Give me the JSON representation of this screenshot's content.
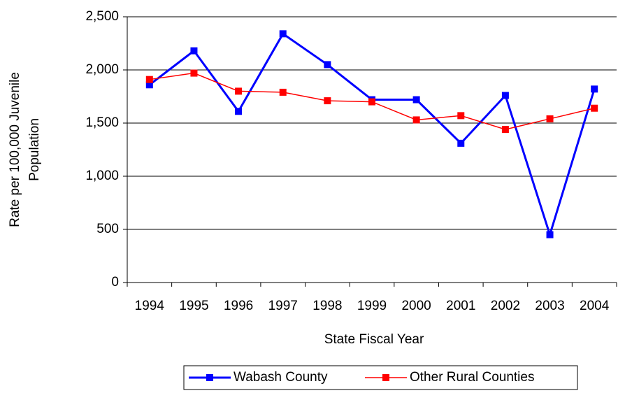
{
  "chart_data": {
    "type": "line",
    "x_label": "State Fiscal Year",
    "y_label": [
      "Rate per 100,000 Juvenile",
      "Population"
    ],
    "categories": [
      "1994",
      "1995",
      "1996",
      "1997",
      "1998",
      "1999",
      "2000",
      "2001",
      "2002",
      "2003",
      "2004"
    ],
    "series": [
      {
        "name": "Wabash County",
        "color": "#0000ff",
        "values": [
          1860,
          2180,
          1610,
          2340,
          2050,
          1720,
          1720,
          1310,
          1760,
          450,
          1820
        ]
      },
      {
        "name": "Other Rural Counties",
        "color": "#ff0000",
        "values": [
          1910,
          1970,
          1800,
          1790,
          1710,
          1700,
          1530,
          1570,
          1440,
          1540,
          1640
        ]
      }
    ],
    "ylim": [
      0,
      2500
    ],
    "yticks": [
      0,
      500,
      {
        "value": 1000,
        "label": "1,000"
      },
      {
        "value": 1500,
        "label": "1,500"
      },
      {
        "value": 2000,
        "label": "2,000"
      },
      {
        "value": 2500,
        "label": "2,500"
      }
    ],
    "grid": true,
    "legend": "bottom"
  }
}
